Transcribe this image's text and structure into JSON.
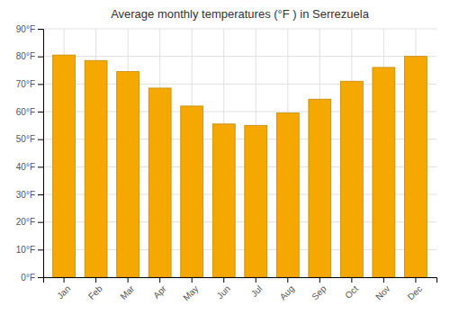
{
  "chart_data": {
    "type": "bar",
    "title": "Average monthly temperatures (°F ) in Serrezuela",
    "categories": [
      "Jan",
      "Feb",
      "Mar",
      "Apr",
      "May",
      "Jun",
      "Jul",
      "Aug",
      "Sep",
      "Oct",
      "Nov",
      "Dec"
    ],
    "values": [
      80.5,
      78.5,
      74.5,
      68.5,
      62,
      55.5,
      55,
      59.5,
      64.5,
      71,
      76,
      80
    ],
    "color": "#F5A800",
    "ylim": [
      0,
      90
    ],
    "yticks": [
      {
        "value": 0,
        "label": "0°F"
      },
      {
        "value": 10,
        "label": "10°F"
      },
      {
        "value": 20,
        "label": "20°F"
      },
      {
        "value": 30,
        "label": "30°F"
      },
      {
        "value": 40,
        "label": "40°F"
      },
      {
        "value": 50,
        "label": "50°F"
      },
      {
        "value": 60,
        "label": "60°F"
      },
      {
        "value": 70,
        "label": "70°F"
      },
      {
        "value": 80,
        "label": "80°F"
      },
      {
        "value": 90,
        "label": "90°F"
      }
    ],
    "grid": true
  }
}
